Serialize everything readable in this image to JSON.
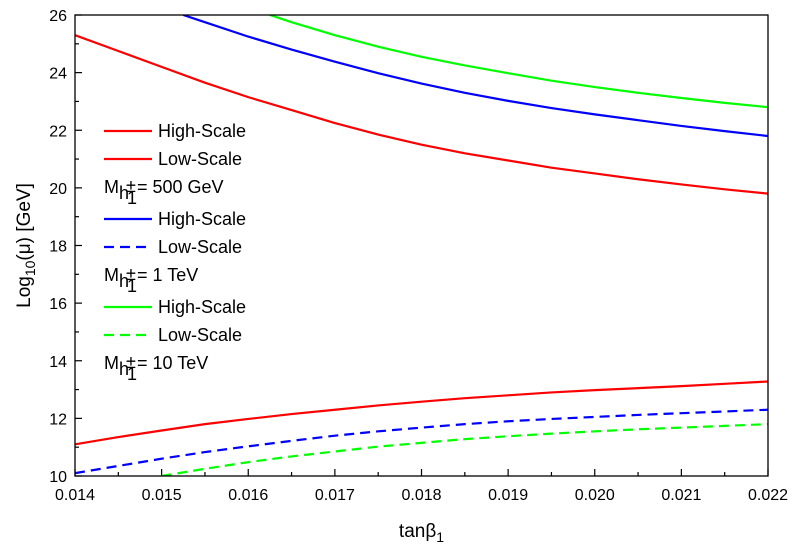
{
  "chart_data": {
    "type": "line",
    "xlabel": "tanβ",
    "xlabel_sub": "1",
    "ylabel_prefix": "Log",
    "ylabel_sub": "10",
    "ylabel_suffix": "(μ) [GeV]",
    "xlim": [
      0.014,
      0.022
    ],
    "ylim": [
      10,
      26
    ],
    "xticks": [
      0.014,
      0.015,
      0.016,
      0.017,
      0.018,
      0.019,
      0.02,
      0.021,
      0.022
    ],
    "xtick_labels": [
      "0.014",
      "0.015",
      "0.016",
      "0.017",
      "0.018",
      "0.019",
      "0.020",
      "0.021",
      "0.022"
    ],
    "yticks": [
      10,
      12,
      14,
      16,
      18,
      20,
      22,
      24,
      26
    ],
    "ytick_labels": [
      "10",
      "12",
      "14",
      "16",
      "18",
      "20",
      "22",
      "24",
      "26"
    ],
    "grid": false,
    "legend_position": "left",
    "legend_groups": [
      {
        "entries": [
          {
            "label": "High-Scale",
            "color": "#ff0000",
            "dash": "solid"
          },
          {
            "label": "Low-Scale",
            "color": "#ff0000",
            "dash": "solid"
          }
        ],
        "mass_symbol": "M",
        "mass_sub": "h",
        "mass_sub_sup": "±",
        "mass_sub_sub": "1",
        "mass_value": "= 500 GeV"
      },
      {
        "entries": [
          {
            "label": "High-Scale",
            "color": "#0000ff",
            "dash": "solid"
          },
          {
            "label": "Low-Scale",
            "color": "#0000ff",
            "dash": "dashed"
          }
        ],
        "mass_symbol": "M",
        "mass_sub": "h",
        "mass_sub_sup": "±",
        "mass_sub_sub": "1",
        "mass_value": "= 1 TeV"
      },
      {
        "entries": [
          {
            "label": "High-Scale",
            "color": "#00ff00",
            "dash": "solid"
          },
          {
            "label": "Low-Scale",
            "color": "#00ff00",
            "dash": "dashed"
          }
        ],
        "mass_symbol": "M",
        "mass_sub": "h",
        "mass_sub_sup": "±",
        "mass_sub_sub": "1",
        "mass_value": "= 10 TeV"
      }
    ],
    "series": [
      {
        "group": "500 GeV",
        "scale": "High-Scale",
        "color": "#ff0000",
        "dash": "solid",
        "x": [
          0.014,
          0.0145,
          0.015,
          0.0155,
          0.016,
          0.0165,
          0.017,
          0.0175,
          0.018,
          0.0185,
          0.019,
          0.0195,
          0.02,
          0.0205,
          0.021,
          0.0215,
          0.022
        ],
        "y": [
          25.3,
          24.75,
          24.2,
          23.65,
          23.15,
          22.7,
          22.25,
          21.85,
          21.5,
          21.2,
          20.95,
          20.7,
          20.5,
          20.3,
          20.12,
          19.95,
          19.8
        ]
      },
      {
        "group": "500 GeV",
        "scale": "Low-Scale",
        "color": "#ff0000",
        "dash": "solid",
        "x": [
          0.014,
          0.0145,
          0.015,
          0.0155,
          0.016,
          0.0165,
          0.017,
          0.0175,
          0.018,
          0.0185,
          0.019,
          0.0195,
          0.02,
          0.0205,
          0.021,
          0.0215,
          0.022
        ],
        "y": [
          11.1,
          11.35,
          11.58,
          11.8,
          11.98,
          12.15,
          12.3,
          12.45,
          12.58,
          12.7,
          12.8,
          12.9,
          12.98,
          13.05,
          13.12,
          13.2,
          13.28
        ]
      },
      {
        "group": "1 TeV",
        "scale": "High-Scale",
        "color": "#0000ff",
        "dash": "solid",
        "x": [
          0.01525,
          0.0155,
          0.016,
          0.0165,
          0.017,
          0.0175,
          0.018,
          0.0185,
          0.019,
          0.0195,
          0.02,
          0.0205,
          0.021,
          0.0215,
          0.022
        ],
        "y": [
          26.0,
          25.75,
          25.25,
          24.8,
          24.38,
          23.98,
          23.62,
          23.3,
          23.02,
          22.77,
          22.55,
          22.35,
          22.15,
          21.97,
          21.8
        ]
      },
      {
        "group": "1 TeV",
        "scale": "Low-Scale",
        "color": "#0000ff",
        "dash": "dashed",
        "x": [
          0.014,
          0.0145,
          0.015,
          0.0155,
          0.016,
          0.0165,
          0.017,
          0.0175,
          0.018,
          0.0185,
          0.019,
          0.0195,
          0.02,
          0.0205,
          0.021,
          0.0215,
          0.022
        ],
        "y": [
          10.1,
          10.35,
          10.6,
          10.83,
          11.03,
          11.22,
          11.4,
          11.55,
          11.68,
          11.8,
          11.9,
          11.98,
          12.05,
          12.12,
          12.18,
          12.24,
          12.3
        ]
      },
      {
        "group": "10 TeV",
        "scale": "High-Scale",
        "color": "#00ff00",
        "dash": "solid",
        "x": [
          0.01625,
          0.0165,
          0.017,
          0.0175,
          0.018,
          0.0185,
          0.019,
          0.0195,
          0.02,
          0.0205,
          0.021,
          0.0215,
          0.022
        ],
        "y": [
          26.0,
          25.75,
          25.3,
          24.9,
          24.55,
          24.25,
          23.98,
          23.72,
          23.5,
          23.3,
          23.12,
          22.95,
          22.8
        ]
      },
      {
        "group": "10 TeV",
        "scale": "Low-Scale",
        "color": "#00ff00",
        "dash": "dashed",
        "x": [
          0.015,
          0.0155,
          0.016,
          0.0165,
          0.017,
          0.0175,
          0.018,
          0.0185,
          0.019,
          0.0195,
          0.02,
          0.0205,
          0.021,
          0.0215,
          0.022
        ],
        "y": [
          10.0,
          10.25,
          10.48,
          10.68,
          10.85,
          11.02,
          11.15,
          11.28,
          11.38,
          11.47,
          11.55,
          11.62,
          11.68,
          11.74,
          11.8
        ]
      }
    ]
  }
}
